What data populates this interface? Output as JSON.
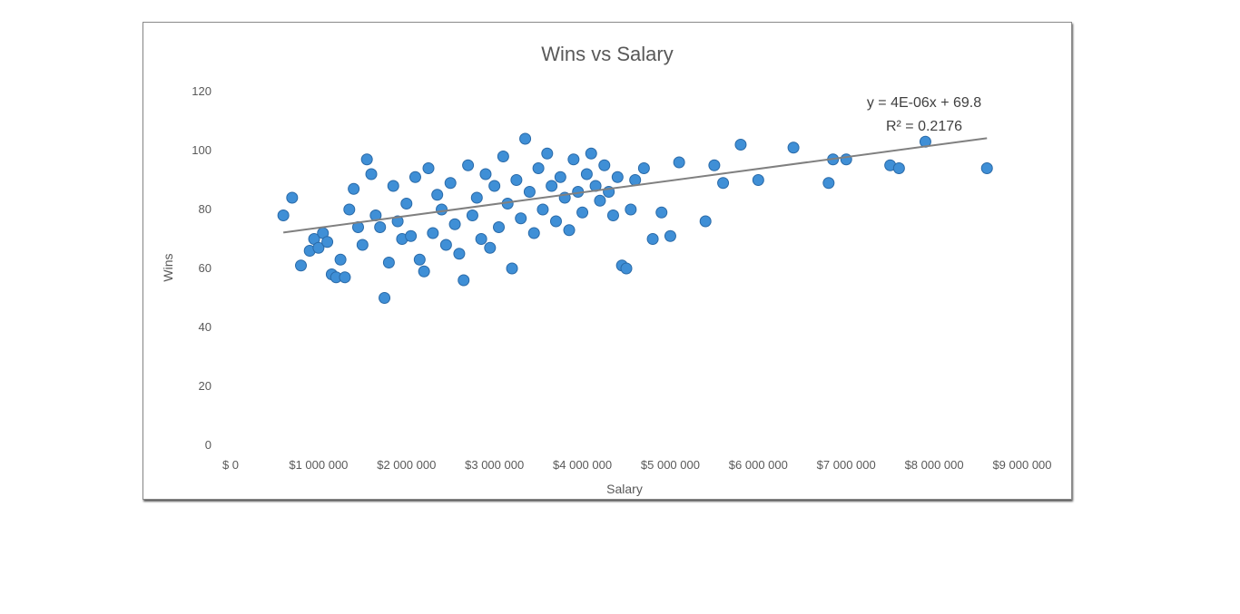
{
  "chart_data": {
    "type": "scatter",
    "title": "Wins vs Salary",
    "xlabel": "Salary",
    "ylabel": "Wins",
    "xlim": [
      0,
      9000000
    ],
    "ylim": [
      0,
      120
    ],
    "x_ticks": [
      0,
      1000000,
      2000000,
      3000000,
      4000000,
      5000000,
      6000000,
      7000000,
      8000000,
      9000000
    ],
    "x_tick_labels": [
      "$ 0",
      "$1 000 000",
      "$2 000 000",
      "$3 000 000",
      "$4 000 000",
      "$5 000 000",
      "$6 000 000",
      "$7 000 000",
      "$8 000 000",
      "$9 000 000"
    ],
    "y_ticks": [
      0,
      20,
      40,
      60,
      80,
      100,
      120
    ],
    "y_tick_labels": [
      "0",
      "20",
      "40",
      "60",
      "80",
      "100",
      "120"
    ],
    "grid": false,
    "legend": "none",
    "marker_color": "#3f8fd6",
    "trendline": {
      "slope": 4e-06,
      "intercept": 69.8,
      "x_range": [
        600000,
        8600000
      ],
      "color": "#808080",
      "equation": "y = 4E-06x + 69.8",
      "r_squared": "R² = 0.2176"
    },
    "points": [
      [
        600000,
        78
      ],
      [
        700000,
        84
      ],
      [
        800000,
        61
      ],
      [
        900000,
        66
      ],
      [
        950000,
        70
      ],
      [
        1000000,
        67
      ],
      [
        1050000,
        72
      ],
      [
        1100000,
        69
      ],
      [
        1150000,
        58
      ],
      [
        1200000,
        57
      ],
      [
        1250000,
        63
      ],
      [
        1300000,
        57
      ],
      [
        1350000,
        80
      ],
      [
        1400000,
        87
      ],
      [
        1450000,
        74
      ],
      [
        1500000,
        68
      ],
      [
        1550000,
        97
      ],
      [
        1600000,
        92
      ],
      [
        1650000,
        78
      ],
      [
        1700000,
        74
      ],
      [
        1750000,
        50
      ],
      [
        1800000,
        62
      ],
      [
        1850000,
        88
      ],
      [
        1900000,
        76
      ],
      [
        1950000,
        70
      ],
      [
        2000000,
        82
      ],
      [
        2050000,
        71
      ],
      [
        2100000,
        91
      ],
      [
        2150000,
        63
      ],
      [
        2200000,
        59
      ],
      [
        2250000,
        94
      ],
      [
        2300000,
        72
      ],
      [
        2350000,
        85
      ],
      [
        2400000,
        80
      ],
      [
        2450000,
        68
      ],
      [
        2500000,
        89
      ],
      [
        2550000,
        75
      ],
      [
        2600000,
        65
      ],
      [
        2650000,
        56
      ],
      [
        2700000,
        95
      ],
      [
        2750000,
        78
      ],
      [
        2800000,
        84
      ],
      [
        2850000,
        70
      ],
      [
        2900000,
        92
      ],
      [
        2950000,
        67
      ],
      [
        3000000,
        88
      ],
      [
        3050000,
        74
      ],
      [
        3100000,
        98
      ],
      [
        3150000,
        82
      ],
      [
        3200000,
        60
      ],
      [
        3250000,
        90
      ],
      [
        3300000,
        77
      ],
      [
        3350000,
        104
      ],
      [
        3400000,
        86
      ],
      [
        3450000,
        72
      ],
      [
        3500000,
        94
      ],
      [
        3550000,
        80
      ],
      [
        3600000,
        99
      ],
      [
        3650000,
        88
      ],
      [
        3700000,
        76
      ],
      [
        3750000,
        91
      ],
      [
        3800000,
        84
      ],
      [
        3850000,
        73
      ],
      [
        3900000,
        97
      ],
      [
        3950000,
        86
      ],
      [
        4000000,
        79
      ],
      [
        4050000,
        92
      ],
      [
        4100000,
        99
      ],
      [
        4150000,
        88
      ],
      [
        4200000,
        83
      ],
      [
        4250000,
        95
      ],
      [
        4300000,
        86
      ],
      [
        4350000,
        78
      ],
      [
        4400000,
        91
      ],
      [
        4450000,
        61
      ],
      [
        4500000,
        60
      ],
      [
        4550000,
        80
      ],
      [
        4600000,
        90
      ],
      [
        4700000,
        94
      ],
      [
        4800000,
        70
      ],
      [
        4900000,
        79
      ],
      [
        5000000,
        71
      ],
      [
        5100000,
        96
      ],
      [
        5400000,
        76
      ],
      [
        5500000,
        95
      ],
      [
        5600000,
        89
      ],
      [
        5800000,
        102
      ],
      [
        6000000,
        90
      ],
      [
        6400000,
        101
      ],
      [
        6800000,
        89
      ],
      [
        6850000,
        97
      ],
      [
        7000000,
        97
      ],
      [
        7500000,
        95
      ],
      [
        7600000,
        94
      ],
      [
        7900000,
        103
      ],
      [
        8600000,
        94
      ]
    ]
  }
}
